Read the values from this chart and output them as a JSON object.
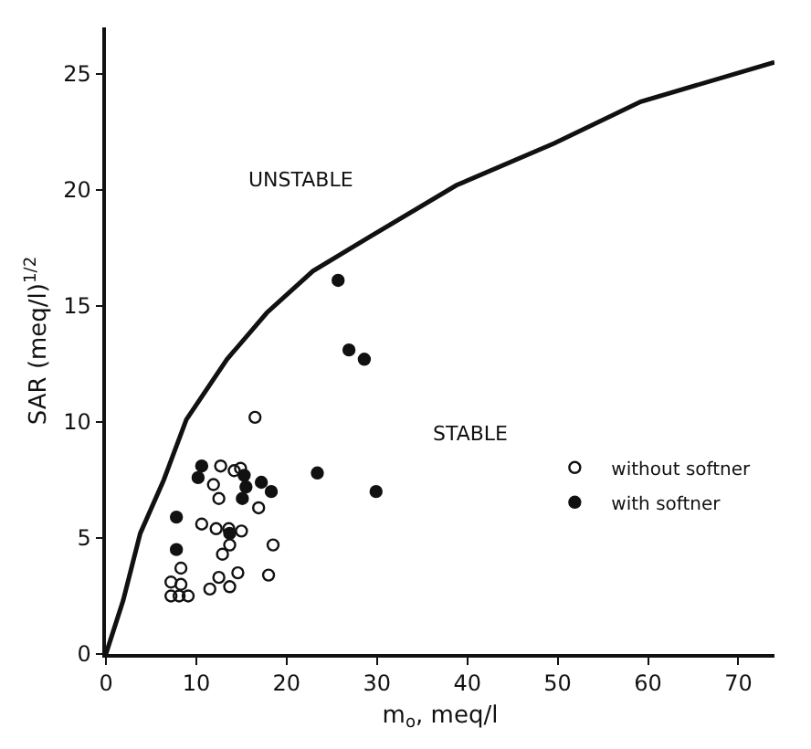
{
  "chart_data": {
    "type": "scatter",
    "xlabel": "m$_{o}$, meq/l",
    "ylabel": "SAR (meq/l)$^{1/2}$",
    "xlim": [
      0,
      74
    ],
    "ylim": [
      0,
      27
    ],
    "xticks": [
      0,
      10,
      20,
      30,
      40,
      50,
      60,
      70
    ],
    "yticks": [
      0,
      5,
      10,
      15,
      20,
      25
    ],
    "grid": false,
    "legend": "bottom right",
    "annotations": [
      "UNSTABLE",
      "STABLE"
    ],
    "series": [
      {
        "type": "line",
        "color": "#111111",
        "marker": "none",
        "line_style": "solid",
        "x": [
          0,
          1.9,
          3.8,
          6.4,
          8.9,
          13.4,
          17.8,
          22.9,
          29.3,
          38.8,
          49.6,
          59.2,
          74
        ],
        "values": [
          0,
          2.3,
          5.2,
          7.5,
          10.1,
          12.7,
          14.7,
          16.5,
          18,
          20.2,
          22,
          23.8,
          25.5
        ]
      },
      {
        "name": "without softner",
        "color": "#111111",
        "marker": "circle-open",
        "x": [
          16.5,
          12.7,
          14.2,
          14.9,
          11.9,
          12.5,
          16.9,
          10.6,
          12.2,
          13.6,
          15.0,
          18.5,
          13.7,
          12.9,
          14.6,
          8.3,
          12.5,
          13.7,
          11.5,
          18.0,
          7.2,
          8.3,
          7.2,
          8.1,
          9.1
        ],
        "values": [
          10.2,
          8.1,
          7.9,
          8.0,
          7.3,
          6.7,
          6.3,
          5.6,
          5.4,
          5.4,
          5.3,
          4.7,
          4.7,
          4.3,
          3.5,
          3.7,
          3.3,
          2.9,
          2.8,
          3.4,
          3.1,
          3.0,
          2.5,
          2.5,
          2.5
        ]
      },
      {
        "name": "with softner",
        "color": "#111111",
        "marker": "circle",
        "x": [
          10.6,
          10.2,
          7.8,
          7.8,
          13.7,
          15.3,
          15.5,
          15.1,
          17.2,
          18.3,
          23.4,
          25.7,
          26.9,
          28.6,
          29.9
        ],
        "values": [
          8.1,
          7.6,
          5.9,
          4.5,
          5.2,
          7.7,
          7.2,
          6.7,
          7.4,
          7.0,
          7.8,
          16.1,
          13.1,
          12.7,
          7.0
        ]
      }
    ]
  }
}
